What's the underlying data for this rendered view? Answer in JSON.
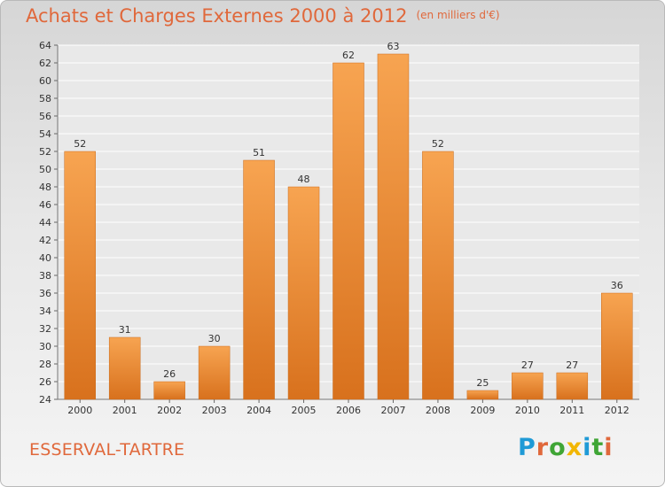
{
  "header": {
    "title": "Achats et Charges Externes 2000 à 2012",
    "unit": "(en milliers d'€)"
  },
  "footer": {
    "commune": "ESSERVAL-TARTRE",
    "brand": [
      "P",
      "r",
      "o",
      "x",
      "i",
      "t",
      "i"
    ]
  },
  "colors": {
    "bar_light": "#f7a451",
    "bar_dark": "#d8711d",
    "bar_edge": "#c96b1c",
    "title": "#e0683b",
    "grid": "#ffffff",
    "brand": [
      "#1f9ad6",
      "#e0683b",
      "#3fa535",
      "#f2b600",
      "#1f9ad6",
      "#3fa535",
      "#e0683b"
    ]
  },
  "chart_data": {
    "type": "bar",
    "categories": [
      "2000",
      "2001",
      "2002",
      "2003",
      "2004",
      "2005",
      "2006",
      "2007",
      "2008",
      "2009",
      "2010",
      "2011",
      "2012"
    ],
    "values": [
      52,
      31,
      26,
      30,
      51,
      48,
      62,
      63,
      52,
      25,
      27,
      27,
      36
    ],
    "title": "Achats et Charges Externes 2000 à 2012",
    "ylim": [
      24,
      64
    ],
    "yticks": [
      24,
      26,
      28,
      30,
      32,
      34,
      36,
      38,
      40,
      42,
      44,
      46,
      48,
      50,
      52,
      54,
      56,
      58,
      60,
      62,
      64
    ],
    "grid": true,
    "legend": "none"
  }
}
